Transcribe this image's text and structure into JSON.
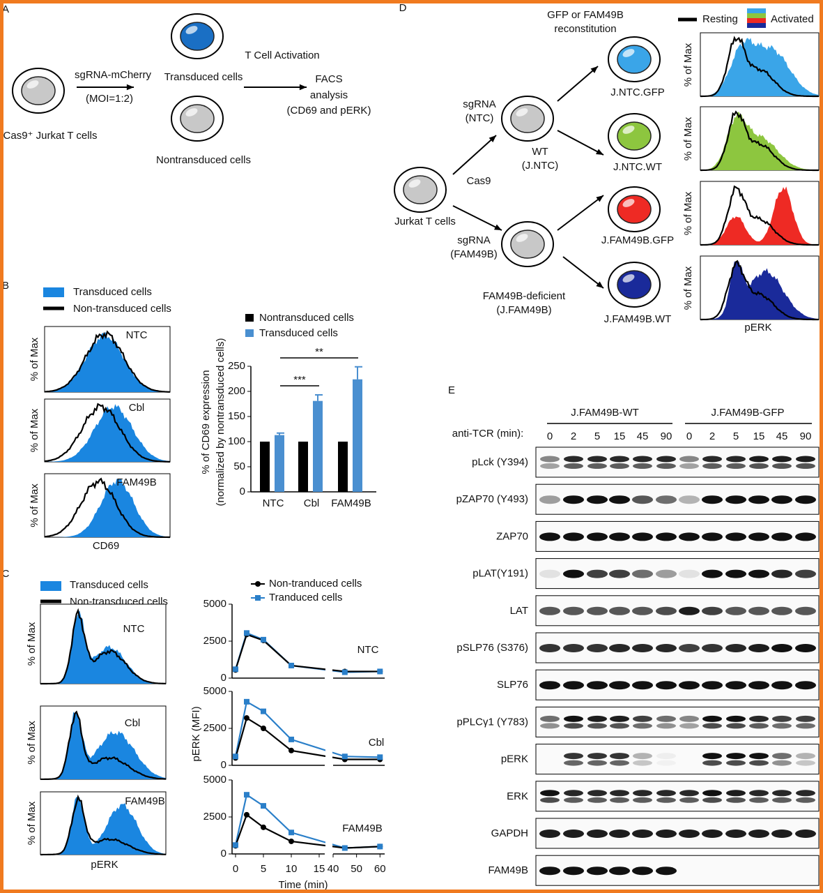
{
  "panel_a": {
    "letter": "A",
    "cell_labels": [
      "Cas9⁺ Jurkat T cells",
      "Transduced cells",
      "Nontransduced cells"
    ],
    "arrow": [
      "sgRNA-mCherry",
      "(MOI=1:2)"
    ],
    "activation": "T Cell Activation",
    "facs": [
      "FACS",
      "analysis",
      "(CD69 and pERK)"
    ]
  },
  "panel_d": {
    "letter": "D",
    "reconstitution": [
      "GFP or FAM49B",
      "reconstitution"
    ],
    "legend_resting": "Resting",
    "legend_activated": "Activated",
    "root": "Jurkat T cells",
    "cas9": "Cas9",
    "sg_ntc": [
      "sgRNA",
      "(NTC)"
    ],
    "wt": [
      "WT",
      "(J.NTC)"
    ],
    "sg_fam": [
      "sgRNA",
      "(FAM49B)"
    ],
    "deficient": [
      "FAM49B-deficient",
      "(J.FAM49B)"
    ],
    "lines": [
      {
        "label": "J.NTC.GFP",
        "color": "#3aa5e8"
      },
      {
        "label": "J.NTC.WT",
        "color": "#8dc63f"
      },
      {
        "label": "J.FAM49B.GFP",
        "color": "#ee2a24"
      },
      {
        "label": "J.FAM49B.WT",
        "color": "#1a2a9a"
      }
    ],
    "ylabel": "% of Max",
    "xlabel": "pERK"
  },
  "panel_b": {
    "letter": "B",
    "legend": [
      "Transduced cells",
      "Non-transduced cells"
    ],
    "histograms": [
      "NTC",
      "Cbl",
      "FAM49B"
    ],
    "ylabel": "% of Max",
    "xlabel": "CD69"
  },
  "panel_c": {
    "letter": "C",
    "legend": [
      "Transduced cells",
      "Non-transduced cells"
    ],
    "histograms": [
      "NTC",
      "Cbl",
      "FAM49B"
    ],
    "ylabel": "% of Max",
    "xlabel": "pERK"
  },
  "chart_data": [
    {
      "type": "bar",
      "categories": [
        "NTC",
        "Cbl",
        "FAM49B"
      ],
      "series": [
        {
          "name": "Nontransduced cells",
          "color": "#000000",
          "values": [
            100,
            100,
            100
          ]
        },
        {
          "name": "Transduced cells",
          "color": "#4a8fd0",
          "values": [
            113,
            181,
            224
          ],
          "errors": [
            4,
            12,
            25
          ]
        }
      ],
      "ylabel": [
        "% of CD69 expression",
        "(normalized by nontransduced cells)"
      ],
      "ylim": [
        0,
        250
      ],
      "yticks": [
        0,
        50,
        100,
        150,
        200,
        250
      ],
      "annotations": [
        "***",
        "**"
      ]
    },
    {
      "type": "line",
      "label": "NTC",
      "x": [
        0,
        2,
        5,
        10,
        45,
        60
      ],
      "series": [
        {
          "name": "Non-tranduced cells",
          "color": "#000000",
          "marker": "circle",
          "values": [
            550,
            2950,
            2550,
            850,
            450,
            450
          ]
        },
        {
          "name": "Tranduced cells",
          "color": "#2a7fc9",
          "marker": "square",
          "values": [
            600,
            3050,
            2600,
            850,
            400,
            450
          ]
        }
      ],
      "ylim": [
        0,
        5000
      ],
      "yticks": [
        0,
        2500,
        5000
      ],
      "xlim": [
        0,
        16
      ],
      "x2lim": [
        40,
        62
      ]
    },
    {
      "type": "line",
      "label": "Cbl",
      "x": [
        0,
        2,
        5,
        10,
        45,
        60
      ],
      "series": [
        {
          "color": "#000000",
          "marker": "circle",
          "values": [
            500,
            3200,
            2500,
            1000,
            400,
            400
          ]
        },
        {
          "color": "#2a7fc9",
          "marker": "square",
          "values": [
            600,
            4300,
            3650,
            1750,
            600,
            550
          ]
        }
      ],
      "ylabel": "pERK (MFI)",
      "ylim": [
        0,
        5000
      ],
      "yticks": [
        0,
        2500,
        5000
      ],
      "xlim": [
        0,
        16
      ],
      "x2lim": [
        40,
        62
      ]
    },
    {
      "type": "line",
      "label": "FAM49B",
      "x": [
        0,
        2,
        5,
        10,
        45,
        60
      ],
      "series": [
        {
          "color": "#000000",
          "marker": "circle",
          "values": [
            550,
            2650,
            1800,
            850,
            400,
            500
          ]
        },
        {
          "color": "#2a7fc9",
          "marker": "square",
          "values": [
            600,
            4000,
            3250,
            1450,
            400,
            500
          ]
        }
      ],
      "xlabel": "Time (min)",
      "ylim": [
        0,
        5000
      ],
      "yticks": [
        0,
        2500,
        5000
      ],
      "xlim": [
        0,
        16
      ],
      "x2lim": [
        40,
        62
      ],
      "xticks": [
        0,
        5,
        10,
        15
      ],
      "x2ticks": [
        40,
        50,
        60
      ]
    }
  ],
  "panel_e": {
    "letter": "E",
    "groups": [
      "J.FAM49B-WT",
      "J.FAM49B-GFP"
    ],
    "time_label": "anti-TCR (min):",
    "times": [
      "0",
      "2",
      "5",
      "15",
      "45",
      "90",
      "0",
      "2",
      "5",
      "15",
      "45",
      "90"
    ],
    "rows": [
      "pLck (Y394)",
      "pZAP70 (Y493)",
      "ZAP70",
      "pLAT(Y191)",
      "LAT",
      "pSLP76 (S376)",
      "SLP76",
      "pPLCγ1 (Y783)",
      "pERK",
      "ERK",
      "GAPDH",
      "FAM49B"
    ]
  }
}
